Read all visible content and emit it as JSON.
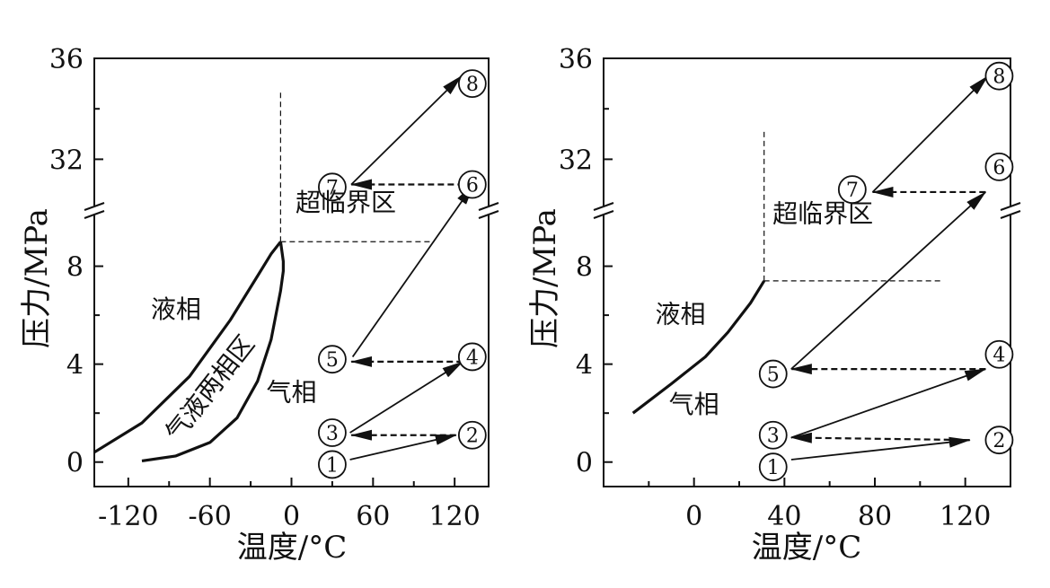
{
  "chart_data": [
    {
      "type": "line",
      "title": "",
      "xlabel": "温度/°C",
      "ylabel": "压力/MPa",
      "xlim": [
        -145,
        145
      ],
      "xticks": [
        -120,
        -60,
        0,
        60,
        120
      ],
      "y_axis_break": {
        "lower_range": [
          -1,
          10
        ],
        "upper_range": [
          30.2,
          36
        ]
      },
      "yticks": [
        0,
        4,
        8,
        32,
        36
      ],
      "curves": [
        {
          "id": "liquid-gas-boundary",
          "points": [
            [
              -145,
              0.4
            ],
            [
              -110,
              1.6
            ],
            [
              -75,
              3.5
            ],
            [
              -45,
              5.8
            ],
            [
              -25,
              7.6
            ],
            [
              -15,
              8.5
            ],
            [
              -8,
              9.0
            ]
          ]
        },
        {
          "id": "two-phase-lower-boundary",
          "points": [
            [
              -110,
              0.05
            ],
            [
              -85,
              0.25
            ],
            [
              -60,
              0.8
            ],
            [
              -40,
              1.8
            ],
            [
              -25,
              3.3
            ],
            [
              -15,
              5.0
            ],
            [
              -8,
              7.0
            ],
            [
              -6,
              7.8
            ],
            [
              -6,
              8.2
            ],
            [
              -8,
              9.0
            ]
          ]
        }
      ],
      "guides": [
        {
          "id": "critical-temperature-line",
          "points": [
            [
              -8,
              9.0
            ],
            [
              -8,
              34.7
            ]
          ]
        },
        {
          "id": "critical-pressure-line",
          "points": [
            [
              -8,
              9.0
            ],
            [
              105,
              9.0
            ]
          ]
        }
      ],
      "states": [
        {
          "label": "1",
          "x": 30,
          "y": -0.1
        },
        {
          "label": "2",
          "x": 133,
          "y": 1.1
        },
        {
          "label": "3",
          "x": 30,
          "y": 1.2
        },
        {
          "label": "4",
          "x": 133,
          "y": 4.3
        },
        {
          "label": "5",
          "x": 30,
          "y": 4.2
        },
        {
          "label": "6",
          "x": 133,
          "y": 31.0
        },
        {
          "label": "7",
          "x": 30,
          "y": 30.9
        },
        {
          "label": "8",
          "x": 133,
          "y": 35.0
        }
      ],
      "processes": [
        {
          "from": [
            43,
            0.1
          ],
          "to": [
            121,
            1.1
          ],
          "style": "solid"
        },
        {
          "from": [
            121,
            1.1
          ],
          "to": [
            44,
            1.1
          ],
          "style": "dashed"
        },
        {
          "from": [
            43,
            1.2
          ],
          "to": [
            126,
            4.1
          ],
          "style": "solid"
        },
        {
          "from": [
            126,
            4.1
          ],
          "to": [
            44,
            4.1
          ],
          "style": "dashed"
        },
        {
          "from": [
            45,
            4.3
          ],
          "to": [
            134,
            31.0
          ],
          "style": "solid"
        },
        {
          "from": [
            134,
            31.0
          ],
          "to": [
            44,
            31.0
          ],
          "style": "dashed"
        },
        {
          "from": [
            44,
            31.0
          ],
          "to": [
            125,
            35.3
          ],
          "style": "solid"
        }
      ],
      "region_labels": {
        "liquid": {
          "text": "液相",
          "x": -85,
          "y": 5.9
        },
        "gas": {
          "text": "气相",
          "x": 0,
          "y": 2.5
        },
        "supercritical": {
          "text": "超临界区",
          "x": 40,
          "y": 10.2
        },
        "two_phase": {
          "text": "气液两相区",
          "x": -55,
          "y": 2.8,
          "rotate": -52
        }
      }
    },
    {
      "type": "line",
      "title": "",
      "xlabel": "温度/°C",
      "ylabel": "压力/MPa",
      "xlim": [
        -40,
        140
      ],
      "xticks": [
        0,
        40,
        80,
        120
      ],
      "y_axis_break": {
        "lower_range": [
          -1,
          10
        ],
        "upper_range": [
          30.2,
          36
        ]
      },
      "yticks": [
        0,
        4,
        8,
        32,
        36
      ],
      "curves": [
        {
          "id": "liquid-gas-boundary",
          "points": [
            [
              -27,
              2.0
            ],
            [
              -10,
              3.2
            ],
            [
              5,
              4.3
            ],
            [
              15,
              5.3
            ],
            [
              25,
              6.5
            ],
            [
              31,
              7.4
            ]
          ]
        }
      ],
      "guides": [
        {
          "id": "critical-temperature-line",
          "points": [
            [
              31,
              7.4
            ],
            [
              31,
              33.2
            ]
          ]
        },
        {
          "id": "critical-pressure-line",
          "points": [
            [
              31,
              7.4
            ],
            [
              110,
              7.4
            ]
          ]
        }
      ],
      "states": [
        {
          "label": "1",
          "x": 35,
          "y": -0.2
        },
        {
          "label": "2",
          "x": 135,
          "y": 0.9
        },
        {
          "label": "3",
          "x": 35,
          "y": 1.1
        },
        {
          "label": "4",
          "x": 135,
          "y": 4.4
        },
        {
          "label": "5",
          "x": 35,
          "y": 3.6
        },
        {
          "label": "6",
          "x": 135,
          "y": 31.7
        },
        {
          "label": "7",
          "x": 70,
          "y": 30.8
        },
        {
          "label": "8",
          "x": 135,
          "y": 35.3
        }
      ],
      "processes": [
        {
          "from": [
            43,
            0.1
          ],
          "to": [
            122,
            0.9
          ],
          "style": "solid"
        },
        {
          "from": [
            122,
            0.9
          ],
          "to": [
            43,
            1.0
          ],
          "style": "dashed"
        },
        {
          "from": [
            43,
            1.0
          ],
          "to": [
            129,
            3.8
          ],
          "style": "solid"
        },
        {
          "from": [
            129,
            3.8
          ],
          "to": [
            43,
            3.8
          ],
          "style": "dashed"
        },
        {
          "from": [
            43,
            3.8
          ],
          "to": [
            129,
            30.7
          ],
          "style": "solid"
        },
        {
          "from": [
            129,
            30.7
          ],
          "to": [
            79,
            30.7
          ],
          "style": "dashed"
        },
        {
          "from": [
            79,
            30.7
          ],
          "to": [
            130,
            35.3
          ],
          "style": "solid"
        }
      ],
      "region_labels": {
        "liquid": {
          "text": "液相",
          "x": -6,
          "y": 5.7
        },
        "gas": {
          "text": "气相",
          "x": 0,
          "y": 2.0
        },
        "supercritical": {
          "text": "超临界区",
          "x": 57,
          "y": 9.8
        }
      }
    }
  ]
}
